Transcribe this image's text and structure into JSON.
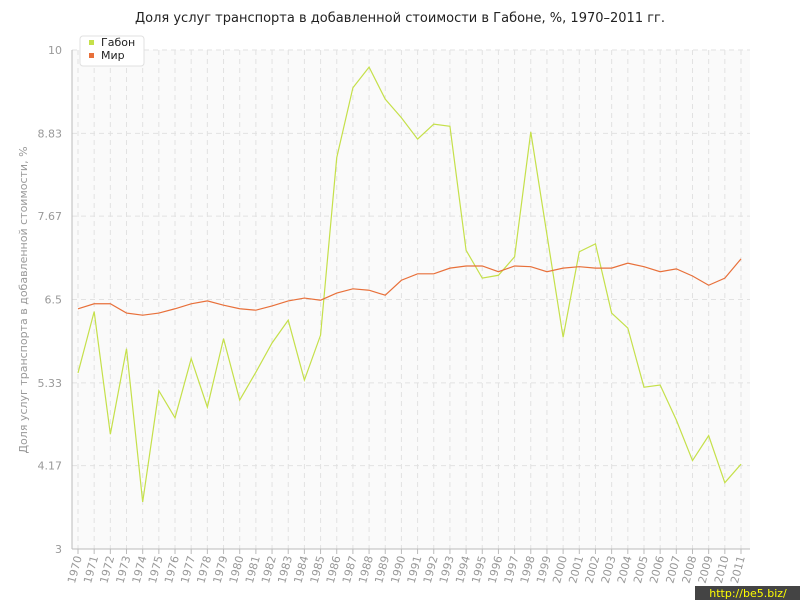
{
  "chart_data": {
    "type": "line",
    "title": "Доля услуг транспорта в добавленной стоимости в Габоне, %, 1970–2011 гг.",
    "y_label": "Доля услуг транспорта в добавленной стоимости, %",
    "watermark": "http://be5.biz/",
    "categories": [
      "1970",
      "1971",
      "1972",
      "1973",
      "1974",
      "1975",
      "1976",
      "1977",
      "1978",
      "1979",
      "1980",
      "1981",
      "1982",
      "1983",
      "1984",
      "1985",
      "1986",
      "1987",
      "1988",
      "1989",
      "1990",
      "1991",
      "1992",
      "1993",
      "1994",
      "1995",
      "1996",
      "1997",
      "1998",
      "1999",
      "2000",
      "2001",
      "2002",
      "2003",
      "2004",
      "2005",
      "2006",
      "2007",
      "2008",
      "2009",
      "2010",
      "2011"
    ],
    "series": [
      {
        "name": "Габон",
        "color": "#c5e04a",
        "values": [
          5.47,
          6.33,
          4.61,
          5.81,
          3.66,
          5.22,
          4.84,
          5.67,
          4.99,
          5.95,
          5.09,
          5.48,
          5.89,
          6.21,
          5.37,
          6.0,
          8.49,
          9.47,
          9.76,
          9.31,
          9.05,
          8.75,
          8.96,
          8.93,
          7.19,
          6.8,
          6.84,
          7.1,
          8.85,
          7.41,
          5.97,
          7.17,
          7.28,
          6.31,
          6.1,
          5.27,
          5.3,
          4.81,
          4.24,
          4.59,
          3.93,
          4.19
        ]
      },
      {
        "name": "Мир",
        "color": "#e8703a",
        "values": [
          6.37,
          6.44,
          6.44,
          6.31,
          6.28,
          6.31,
          6.37,
          6.44,
          6.48,
          6.42,
          6.37,
          6.35,
          6.41,
          6.48,
          6.52,
          6.49,
          6.59,
          6.65,
          6.63,
          6.56,
          6.77,
          6.86,
          6.86,
          6.94,
          6.97,
          6.97,
          6.89,
          6.97,
          6.96,
          6.89,
          6.94,
          6.96,
          6.94,
          6.94,
          7.01,
          6.96,
          6.89,
          6.93,
          6.83,
          6.7,
          6.8,
          7.07
        ]
      }
    ],
    "ylim": [
      3,
      10
    ],
    "yticks": [
      3,
      4.17,
      5.33,
      6.5,
      7.67,
      8.83,
      10
    ],
    "grid": true,
    "legend": "top-left"
  }
}
